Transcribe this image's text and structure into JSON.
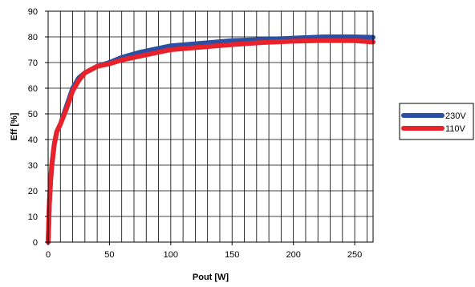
{
  "chart_data": {
    "type": "line",
    "title": "",
    "xlabel": "Pout [W]",
    "ylabel": "Eff [%]",
    "xlim": [
      0,
      265
    ],
    "ylim": [
      0,
      90
    ],
    "x_ticks": [
      "0",
      "50",
      "100",
      "150",
      "200",
      "250"
    ],
    "y_ticks": [
      "0",
      "10",
      "20",
      "30",
      "40",
      "50",
      "60",
      "70",
      "80",
      "90"
    ],
    "grid": true,
    "legend": "right",
    "series": [
      {
        "name": "230V",
        "color": "#2B4FA2",
        "x": [
          0,
          1,
          2,
          3,
          5,
          7,
          10,
          15,
          20,
          25,
          30,
          40,
          50,
          60,
          75,
          100,
          125,
          150,
          175,
          200,
          225,
          250,
          265
        ],
        "y": [
          0,
          15,
          24,
          30,
          38,
          43,
          46,
          53,
          60,
          64,
          66,
          68.5,
          70,
          72,
          74,
          76.5,
          77.5,
          78.5,
          79,
          79.5,
          80,
          80,
          79.8
        ]
      },
      {
        "name": "110V",
        "color": "#E8222A",
        "x": [
          0,
          1,
          2,
          3,
          5,
          7,
          10,
          15,
          20,
          25,
          30,
          40,
          50,
          60,
          75,
          100,
          125,
          150,
          175,
          200,
          225,
          250,
          265
        ],
        "y": [
          0,
          15,
          24,
          30,
          38,
          43,
          46,
          52,
          59,
          63,
          66,
          68.5,
          69.5,
          71,
          72.5,
          75,
          76,
          77,
          77.8,
          78.3,
          78.6,
          78.5,
          78
        ]
      }
    ]
  }
}
